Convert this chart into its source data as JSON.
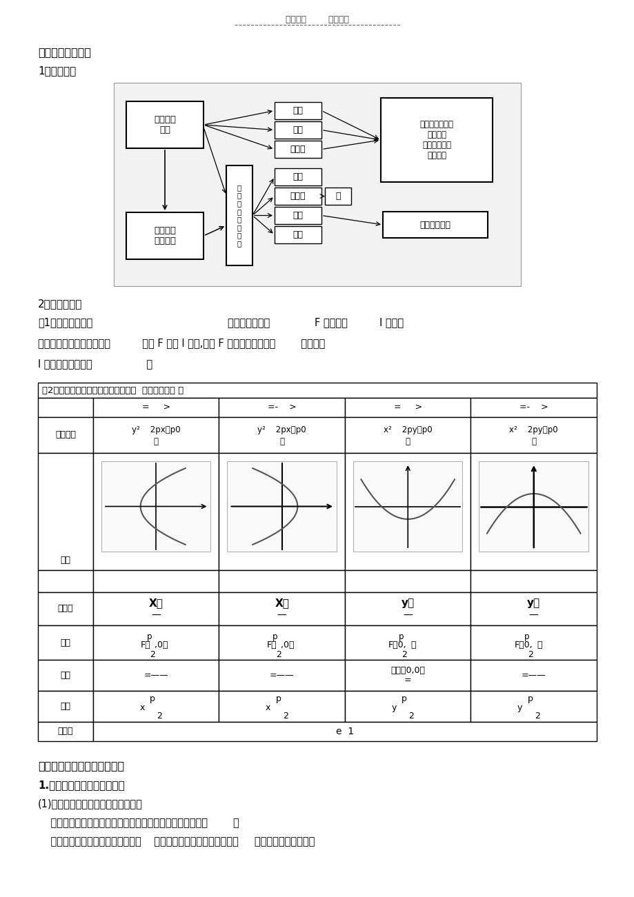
{
  "cjk_font": "Noto Sans CJK SC",
  "page_header": "学习必备        欢迎下载",
  "section3_title": "第三部分：抛物线",
  "knowledge_net_label": "1，学问网络",
  "basic_knowledge_label": "2，基本学问点",
  "def1_label": "〔1〕抛物线的定义",
  "def1_text_a": "：平面内到定点              F 和定直线          l 的距离",
  "def1_text_b": "相等的点的轨迹叫做抛物线          〔点 F 不在 l 上〕,定点 F 叫做抛物线的焦点        ，定直线",
  "def1_text_c": "l 叫做抛物线的准线                 。",
  "table_title": "〔2〕抛物线的标准方程及其几何性质  〔如下表所示 〕",
  "col_sign1": "=     >",
  "col_sign2": "=-    >",
  "col_sign3": "=     >",
  "col_sign4": "=-    >",
  "eq1_top": "y²    2px（p0",
  "eq1_bot": "）",
  "eq2_top": "y²    2px（p0",
  "eq2_bot": "）",
  "eq3_top": "x²    2py（p0",
  "eq3_bot": "）",
  "eq4_top": "x²    2py（p0",
  "eq4_bot": "）",
  "lbl_biaozhun": "标准方程",
  "lbl_figure": "图形",
  "lbl_axis": "对称轴",
  "lbl_focus": "焦点",
  "lbl_vertex": "顶点",
  "lbl_zhunxian": "准线",
  "lbl_eccen": "离心率",
  "axis1": "X轴",
  "axis2": "X轴",
  "axis3": "y轴",
  "axis4": "y轴",
  "focus1_a": "F（",
  "focus1_b": "p",
  "focus1_c": "  ,0）",
  "focus1_d": "2",
  "focus2_a": "F（",
  "focus2_b": "p",
  "focus2_c": "  ,0）",
  "focus2_d": "2",
  "focus3_a": "F（0,",
  "focus3_b": "p",
  "focus3_c": "）",
  "focus3_d": "2",
  "focus4_a": "F（0,",
  "focus4_b": "p",
  "focus4_c": "）",
  "focus4_d": "2",
  "vertex1": "=——",
  "vertex2": "=——",
  "vertex3a": "原点〔0,0〕",
  "vertex3b": "=",
  "vertex4": "=——",
  "zhunxian1a": "x",
  "zhunxian1b": "p",
  "zhunxian1c": "2",
  "zhunxian2a": "x",
  "zhunxian2b": "p",
  "zhunxian2c": "2",
  "zhunxian3a": "y",
  "zhunxian3b": "p",
  "zhunxian3c": "2",
  "zhunxian4a": "y",
  "zhunxian4b": "p",
  "zhunxian4c": "2",
  "eccen": "e  1",
  "sec4_title": "第四部分：圆锥曲线综合问题",
  "sec4_s1": "1.直线与圆锥曲线的位置关系",
  "sec4_s1_1": "(1)直线与圆锥曲线的位置关系和判定",
  "sec4_t1": "    直线与圆锥曲线的位置关系有三种情形：相交，相切，相离        。",
  "sec4_t2": "    方法：直线方程是二元一次方程，    圆锥曲线方程是二元二次方程，     由它们组成的方程组，",
  "diag_boxes": {
    "def_box": "抛物线的\n定义",
    "std_box": "抛物线的\n标准方程",
    "geo_box": "抛\n物\n线\n的\n几\n何\n性\n质",
    "focal": "焦点",
    "zhunxian": "准线",
    "lixinlv": "离心率",
    "fanwei": "范围",
    "duichengxing": "对称性",
    "zhou": "轴",
    "dingdian": "顶点",
    "tongjing": "通径",
    "synthesis": "抛物线的定义、\n标准方程\n与几何性质的\n综合应用",
    "huafa": "抛物线的画法"
  }
}
